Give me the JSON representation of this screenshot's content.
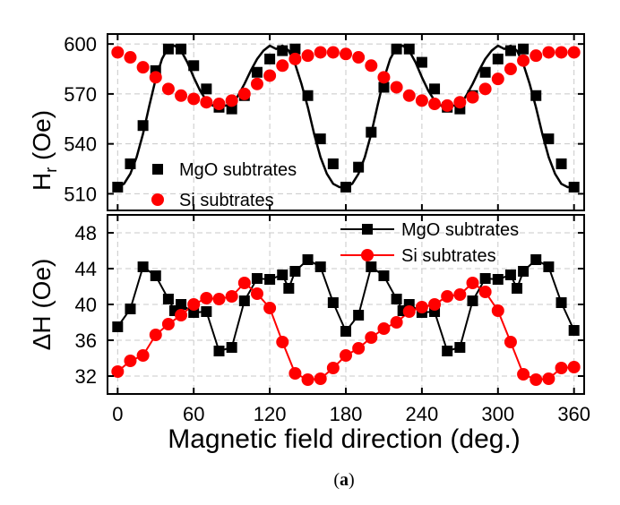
{
  "figure": {
    "caption_prefix": "(",
    "caption_label": "a",
    "caption_suffix": ")"
  },
  "chart_data": [
    {
      "type": "scatter",
      "panel": "top",
      "title": "",
      "xlabel": "",
      "ylabel_main": "H",
      "ylabel_sub": "r",
      "ylabel_unit": " (Oe)",
      "xlim": [
        -8,
        368
      ],
      "ylim": [
        500,
        606
      ],
      "yticks": [
        510,
        540,
        570,
        600
      ],
      "grid": true,
      "legend_position": "bottom-left",
      "series": [
        {
          "name": "MgO subtrates",
          "color": "#000000",
          "marker": "square",
          "x": [
            0,
            10,
            20,
            30,
            40,
            50,
            60,
            70,
            80,
            90,
            100,
            110,
            120,
            130,
            140,
            150,
            160,
            170,
            180,
            190,
            200,
            210,
            220,
            230,
            240,
            250,
            260,
            270,
            280,
            290,
            300,
            310,
            320,
            330,
            340,
            350,
            360
          ],
          "y": [
            514,
            528,
            551,
            584,
            597,
            597,
            587,
            573,
            562,
            561,
            569,
            583,
            591,
            596,
            597,
            569,
            543,
            528,
            514,
            526,
            547,
            574,
            597,
            597,
            589,
            573,
            562,
            561,
            569,
            583,
            591,
            596,
            597,
            569,
            543,
            528,
            514
          ]
        },
        {
          "name": "Si subtrates",
          "color": "#ff0000",
          "marker": "circle",
          "x": [
            0,
            10,
            20,
            30,
            40,
            50,
            60,
            70,
            80,
            90,
            100,
            110,
            120,
            130,
            140,
            150,
            160,
            170,
            180,
            190,
            200,
            210,
            220,
            230,
            240,
            250,
            260,
            270,
            280,
            290,
            300,
            310,
            320,
            330,
            340,
            350,
            360
          ],
          "y": [
            595,
            592,
            586,
            580,
            573,
            569,
            567,
            565,
            564,
            566,
            570,
            576,
            581,
            587,
            591,
            593,
            595,
            595,
            594,
            592,
            587,
            580,
            574,
            569,
            566,
            564,
            563,
            565,
            568,
            573,
            579,
            585,
            590,
            593,
            595,
            595,
            595
          ]
        }
      ],
      "fit_curve": {
        "series": "MgO subtrates",
        "color": "#000000",
        "x": [
          0,
          5,
          10,
          15,
          20,
          25,
          30,
          35,
          40,
          45,
          50,
          55,
          60,
          65,
          70,
          75,
          80,
          85,
          90,
          95,
          100,
          105,
          110,
          115,
          120,
          125,
          130,
          135,
          140,
          145,
          150,
          155,
          160,
          165,
          170,
          175,
          180,
          185,
          190,
          195,
          200,
          205,
          210,
          215,
          220,
          225,
          230,
          235,
          240,
          245,
          250,
          255,
          260,
          265,
          270,
          275,
          280,
          285,
          290,
          295,
          300,
          305,
          310,
          315,
          320,
          325,
          330,
          335,
          340,
          345,
          350,
          355,
          360
        ],
        "y": [
          514,
          516,
          522,
          532,
          546,
          563,
          579,
          591,
          598,
          599,
          596,
          589,
          580,
          572,
          566,
          563,
          562,
          563,
          563,
          569,
          576,
          584,
          591,
          596,
          599,
          597,
          599,
          596,
          588,
          576,
          562,
          546,
          532,
          522,
          516,
          514,
          514,
          516,
          522,
          532,
          546,
          563,
          579,
          591,
          598,
          599,
          596,
          589,
          580,
          572,
          566,
          563,
          562,
          563,
          563,
          569,
          576,
          584,
          591,
          596,
          599,
          597,
          599,
          596,
          588,
          576,
          562,
          546,
          532,
          522,
          516,
          514,
          514
        ]
      }
    },
    {
      "type": "line",
      "panel": "bottom",
      "title": "",
      "xlabel": "Magnetic field direction (deg.)",
      "ylabel": "ΔH (Oe)",
      "xlim": [
        -8,
        368
      ],
      "ylim": [
        30,
        50
      ],
      "xticks": [
        0,
        60,
        120,
        180,
        240,
        300,
        360
      ],
      "yticks": [
        32,
        36,
        40,
        44,
        48
      ],
      "grid": true,
      "legend_position": "top-right",
      "series": [
        {
          "name": "MgO subtrates",
          "color": "#000000",
          "marker": "square",
          "x": [
            0,
            10,
            20,
            30,
            40,
            45,
            50,
            60,
            70,
            80,
            90,
            100,
            110,
            120,
            130,
            135,
            140,
            150,
            160,
            170,
            180,
            190,
            200,
            210,
            220,
            225,
            230,
            240,
            250,
            260,
            270,
            280,
            290,
            300,
            310,
            315,
            320,
            330,
            340,
            350,
            360
          ],
          "y": [
            37.5,
            39.5,
            44.2,
            43.2,
            40.6,
            39.3,
            40.0,
            39.1,
            39.2,
            34.8,
            35.2,
            40.4,
            42.9,
            42.8,
            43.3,
            41.8,
            43.7,
            45.0,
            44.2,
            40.2,
            37.0,
            38.8,
            44.2,
            43.2,
            40.6,
            39.3,
            40.0,
            39.1,
            39.2,
            34.8,
            35.2,
            40.4,
            42.9,
            42.8,
            43.3,
            41.8,
            43.7,
            45.0,
            44.2,
            40.2,
            37.1
          ]
        },
        {
          "name": "Si subtrates",
          "color": "#ff0000",
          "marker": "circle",
          "x": [
            0,
            10,
            20,
            30,
            40,
            50,
            60,
            70,
            80,
            90,
            100,
            110,
            120,
            130,
            140,
            150,
            160,
            170,
            180,
            190,
            200,
            210,
            220,
            230,
            240,
            250,
            260,
            270,
            280,
            290,
            300,
            310,
            320,
            330,
            340,
            350,
            360
          ],
          "y": [
            32.5,
            33.7,
            34.3,
            36.6,
            37.8,
            38.8,
            40.0,
            40.7,
            40.6,
            40.9,
            42.4,
            41.2,
            39.6,
            35.8,
            32.3,
            31.6,
            31.7,
            32.9,
            34.3,
            35.1,
            36.3,
            37.3,
            38.0,
            39.2,
            39.7,
            40.0,
            40.9,
            41.1,
            42.4,
            41.4,
            39.3,
            35.8,
            32.2,
            31.6,
            31.7,
            32.9,
            33.0
          ]
        }
      ]
    }
  ]
}
